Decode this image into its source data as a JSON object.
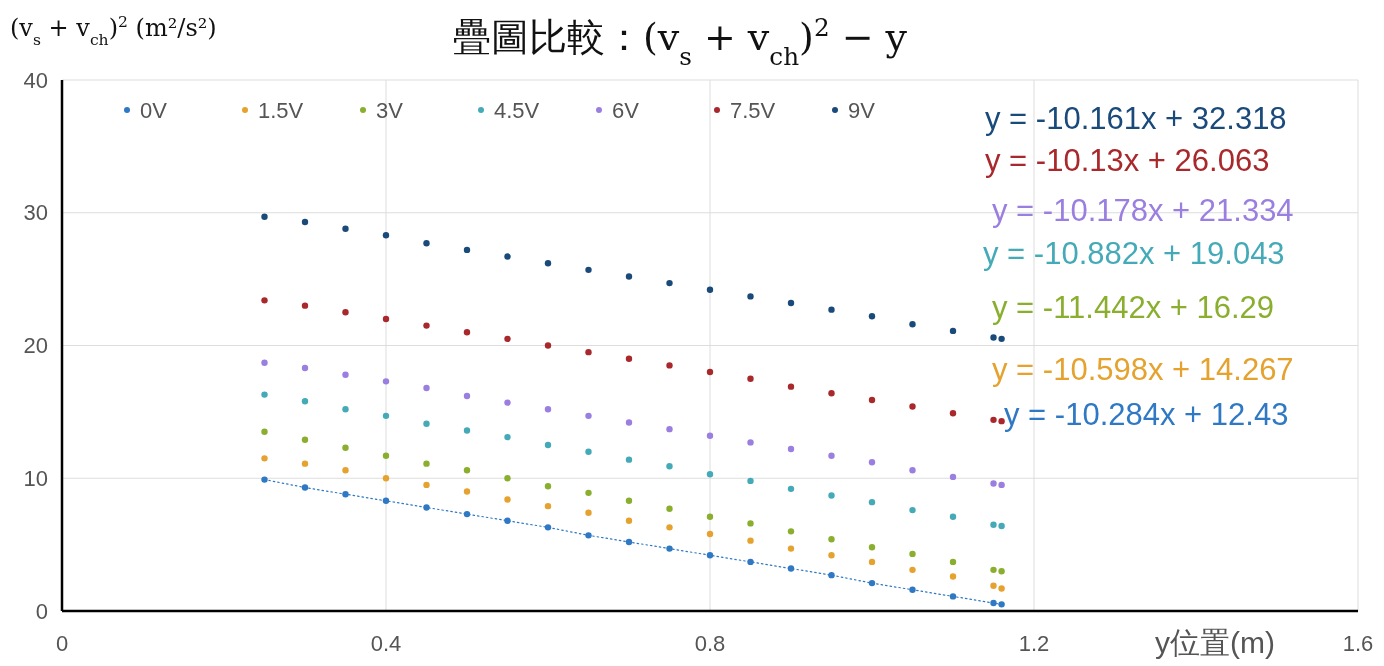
{
  "chart_data": {
    "type": "scatter",
    "title": "疊圖比較：(v$_{s}$ + v$_{ch}$)$^{2}$ − y",
    "ylabel": "(v$_{s}$ + v$_{ch}$)$^{2}$  (m²/s²)",
    "xlabel": "y位置(m)",
    "x": [
      0.25,
      0.3,
      0.35,
      0.4,
      0.45,
      0.5,
      0.55,
      0.6,
      0.65,
      0.7,
      0.75,
      0.8,
      0.85,
      0.9,
      0.95,
      1.0,
      1.05,
      1.1,
      1.15,
      1.16
    ],
    "series": [
      {
        "name": "0V",
        "color": "#2e78c4",
        "type": "line",
        "line_style": "dotted",
        "values": [
          9.9,
          9.3,
          8.8,
          8.3,
          7.8,
          7.3,
          6.8,
          6.3,
          5.7,
          5.2,
          4.7,
          4.2,
          3.7,
          3.2,
          2.7,
          2.1,
          1.6,
          1.1,
          0.6,
          0.5
        ]
      },
      {
        "name": "1.5V",
        "color": "#e5a22e",
        "values": [
          11.5,
          11.1,
          10.6,
          10.0,
          9.5,
          9.0,
          8.4,
          7.9,
          7.4,
          6.8,
          6.3,
          5.8,
          5.3,
          4.7,
          4.2,
          3.7,
          3.1,
          2.6,
          1.9,
          1.7
        ]
      },
      {
        "name": "3V",
        "color": "#8aae2e",
        "values": [
          13.5,
          12.9,
          12.3,
          11.7,
          11.1,
          10.6,
          10.0,
          9.4,
          8.9,
          8.3,
          7.7,
          7.1,
          6.6,
          6.0,
          5.4,
          4.8,
          4.3,
          3.7,
          3.1,
          3.0
        ]
      },
      {
        "name": "4.5V",
        "color": "#45aab8",
        "values": [
          16.3,
          15.8,
          15.2,
          14.7,
          14.1,
          13.6,
          13.1,
          12.5,
          12.0,
          11.4,
          10.9,
          10.3,
          9.8,
          9.2,
          8.7,
          8.2,
          7.6,
          7.1,
          6.5,
          6.4
        ]
      },
      {
        "name": "6V",
        "color": "#9a7fe0",
        "values": [
          18.7,
          18.3,
          17.8,
          17.3,
          16.8,
          16.2,
          15.7,
          15.2,
          14.7,
          14.2,
          13.7,
          13.2,
          12.7,
          12.2,
          11.7,
          11.2,
          10.6,
          10.1,
          9.6,
          9.5
        ]
      },
      {
        "name": "7.5V",
        "color": "#a8282c",
        "values": [
          23.4,
          23.0,
          22.5,
          22.0,
          21.5,
          21.0,
          20.5,
          20.0,
          19.5,
          19.0,
          18.5,
          18.0,
          17.5,
          16.9,
          16.4,
          15.9,
          15.4,
          14.9,
          14.4,
          14.3
        ]
      },
      {
        "name": "9V",
        "color": "#1a4a7a",
        "values": [
          29.7,
          29.3,
          28.8,
          28.3,
          27.7,
          27.2,
          26.7,
          26.2,
          25.7,
          25.2,
          24.7,
          24.2,
          23.7,
          23.2,
          22.7,
          22.2,
          21.6,
          21.1,
          20.6,
          20.5
        ]
      }
    ],
    "annotations": [
      "y = -10.161x + 32.318",
      "y = -10.13x + 26.063",
      "y = -10.178x + 21.334",
      "y = -10.882x + 19.043",
      "y = -11.442x + 16.29",
      "y = -10.598x + 14.267",
      "y = -10.284x + 12.43"
    ],
    "xlim": [
      0,
      1.6
    ],
    "xticks": [
      0,
      0.4,
      0.8,
      1.2,
      1.6
    ],
    "ylim": [
      0,
      40
    ],
    "yticks": [
      0,
      10,
      20,
      30,
      40
    ],
    "grid": true,
    "legend": "top",
    "marker": "circle"
  }
}
